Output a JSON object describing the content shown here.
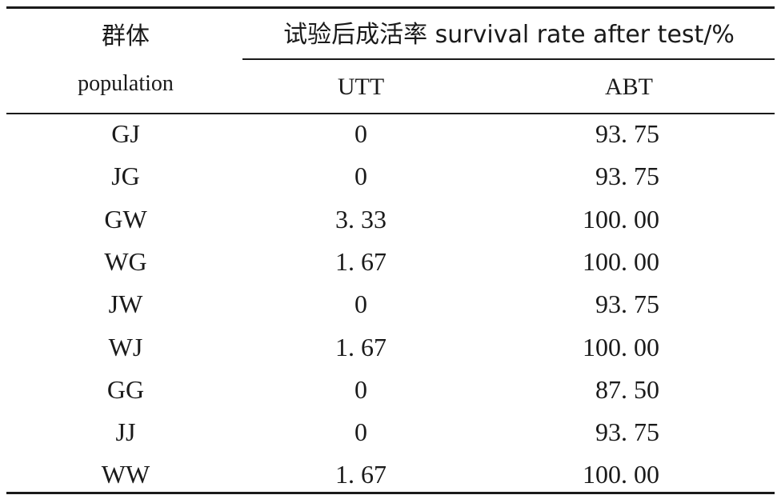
{
  "header": {
    "population_cn": "群体",
    "population_en": "population",
    "group_title": "试验后成活率 survival rate after test/%",
    "col_utt": "UTT",
    "col_abt": "ABT"
  },
  "rows": [
    {
      "population": "GJ",
      "utt": "0",
      "abt": "93. 75"
    },
    {
      "population": "JG",
      "utt": "0",
      "abt": "93. 75"
    },
    {
      "population": "GW",
      "utt": "3. 33",
      "abt": "100. 00"
    },
    {
      "population": "WG",
      "utt": "1. 67",
      "abt": "100. 00"
    },
    {
      "population": "JW",
      "utt": "0",
      "abt": "93. 75"
    },
    {
      "population": "WJ",
      "utt": "1. 67",
      "abt": "100. 00"
    },
    {
      "population": "GG",
      "utt": "0",
      "abt": "87. 50"
    },
    {
      "population": "JJ",
      "utt": "0",
      "abt": "93. 75"
    },
    {
      "population": "WW",
      "utt": "1. 67",
      "abt": "100. 00"
    }
  ]
}
